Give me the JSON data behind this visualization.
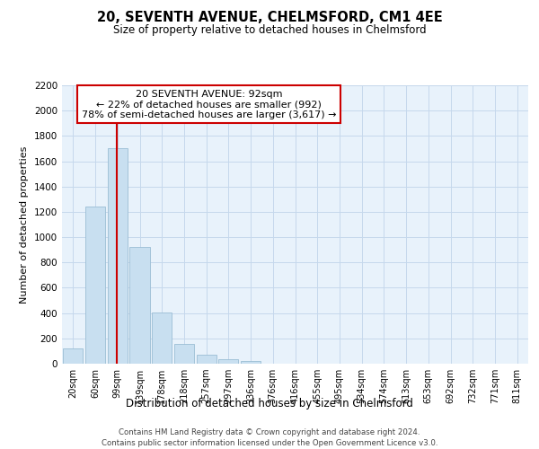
{
  "title": "20, SEVENTH AVENUE, CHELMSFORD, CM1 4EE",
  "subtitle": "Size of property relative to detached houses in Chelmsford",
  "xlabel": "Distribution of detached houses by size in Chelmsford",
  "ylabel": "Number of detached properties",
  "bar_labels": [
    "20sqm",
    "60sqm",
    "99sqm",
    "139sqm",
    "178sqm",
    "218sqm",
    "257sqm",
    "297sqm",
    "336sqm",
    "376sqm",
    "416sqm",
    "455sqm",
    "495sqm",
    "534sqm",
    "574sqm",
    "613sqm",
    "653sqm",
    "692sqm",
    "732sqm",
    "771sqm",
    "811sqm"
  ],
  "bar_values": [
    120,
    1245,
    1700,
    925,
    405,
    155,
    70,
    35,
    20,
    0,
    0,
    0,
    0,
    0,
    0,
    0,
    0,
    0,
    0,
    0,
    0
  ],
  "bar_color": "#c8dff0",
  "bar_edge_color": "#9bbdd4",
  "vline_color": "#cc0000",
  "vline_x": 1.97,
  "annotation_title": "20 SEVENTH AVENUE: 92sqm",
  "annotation_line1": "← 22% of detached houses are smaller (992)",
  "annotation_line2": "78% of semi-detached houses are larger (3,617) →",
  "annotation_box_color": "#ffffff",
  "annotation_box_edge": "#cc0000",
  "ylim": [
    0,
    2200
  ],
  "yticks": [
    0,
    200,
    400,
    600,
    800,
    1000,
    1200,
    1400,
    1600,
    1800,
    2000,
    2200
  ],
  "grid_color": "#c5d8ec",
  "background_color": "#e8f2fb",
  "footer_line1": "Contains HM Land Registry data © Crown copyright and database right 2024.",
  "footer_line2": "Contains public sector information licensed under the Open Government Licence v3.0."
}
